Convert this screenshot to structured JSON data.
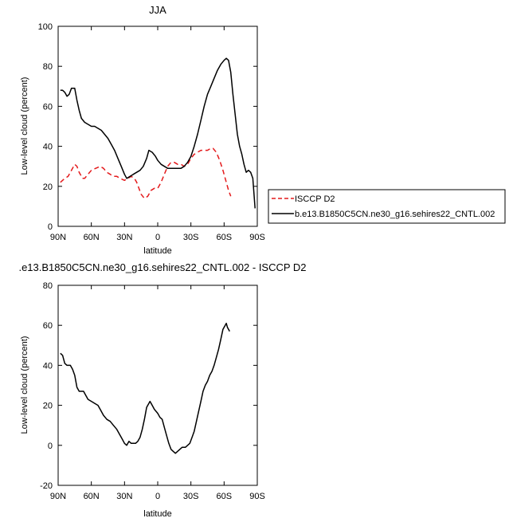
{
  "colors": {
    "model": "#000000",
    "obs": "#e41a1c",
    "diff": "#000000"
  },
  "chart_data": [
    {
      "type": "line",
      "title": "JJA",
      "xlabel": "latitude",
      "ylabel": "Low-level cloud (percent)",
      "xlim": [
        90,
        -90
      ],
      "ylim": [
        0,
        100
      ],
      "xticks": [
        {
          "value": 90,
          "label": "90N"
        },
        {
          "value": 60,
          "label": "60N"
        },
        {
          "value": 30,
          "label": "30N"
        },
        {
          "value": 0,
          "label": "0"
        },
        {
          "value": -30,
          "label": "30S"
        },
        {
          "value": -60,
          "label": "60S"
        },
        {
          "value": -90,
          "label": "90S"
        }
      ],
      "yticks": [
        {
          "value": 0,
          "label": "0"
        },
        {
          "value": 20,
          "label": "20"
        },
        {
          "value": 40,
          "label": "40"
        },
        {
          "value": 60,
          "label": "60"
        },
        {
          "value": 80,
          "label": "80"
        },
        {
          "value": 100,
          "label": "100"
        }
      ],
      "legend_position": "right",
      "series": [
        {
          "name": "ISCCP D2",
          "color": "#e41a1c",
          "dash": "dashed",
          "points": [
            [
              88,
              22
            ],
            [
              84,
              24
            ],
            [
              81,
              25
            ],
            [
              78,
              28
            ],
            [
              75,
              31
            ],
            [
              73,
              30
            ],
            [
              71,
              27
            ],
            [
              68,
              24
            ],
            [
              66,
              24
            ],
            [
              63,
              26
            ],
            [
              60,
              28
            ],
            [
              56,
              29
            ],
            [
              52,
              30
            ],
            [
              49,
              29
            ],
            [
              46,
              27
            ],
            [
              43,
              26
            ],
            [
              40,
              25
            ],
            [
              37,
              25
            ],
            [
              34,
              24
            ],
            [
              30,
              23
            ],
            [
              27,
              24
            ],
            [
              24,
              25
            ],
            [
              21,
              24
            ],
            [
              19,
              22
            ],
            [
              17,
              19
            ],
            [
              15,
              16
            ],
            [
              12,
              14
            ],
            [
              9,
              15
            ],
            [
              6,
              18
            ],
            [
              3,
              19
            ],
            [
              0,
              19
            ],
            [
              -3,
              22
            ],
            [
              -6,
              26
            ],
            [
              -9,
              30
            ],
            [
              -12,
              32
            ],
            [
              -15,
              32
            ],
            [
              -18,
              31
            ],
            [
              -21,
              31
            ],
            [
              -24,
              30
            ],
            [
              -27,
              31
            ],
            [
              -30,
              34
            ],
            [
              -33,
              36
            ],
            [
              -36,
              37
            ],
            [
              -39,
              38
            ],
            [
              -42,
              38
            ],
            [
              -45,
              38
            ],
            [
              -48,
              39
            ],
            [
              -50,
              39
            ],
            [
              -53,
              37
            ],
            [
              -56,
              33
            ],
            [
              -59,
              28
            ],
            [
              -62,
              22
            ],
            [
              -64,
              18
            ],
            [
              -66,
              15
            ]
          ]
        },
        {
          "name": "b.e13.B1850C5CN.ne30_g16.sehires22_CNTL.002",
          "color": "#000000",
          "dash": "solid",
          "points": [
            [
              88,
              68
            ],
            [
              86,
              68
            ],
            [
              84,
              67
            ],
            [
              82,
              65
            ],
            [
              80,
              66
            ],
            [
              78,
              69
            ],
            [
              75,
              69
            ],
            [
              73,
              63
            ],
            [
              71,
              58
            ],
            [
              69,
              54
            ],
            [
              66,
              52
            ],
            [
              63,
              51
            ],
            [
              60,
              50
            ],
            [
              57,
              50
            ],
            [
              54,
              49
            ],
            [
              51,
              48
            ],
            [
              48,
              46
            ],
            [
              45,
              44
            ],
            [
              42,
              41
            ],
            [
              39,
              38
            ],
            [
              36,
              34
            ],
            [
              33,
              30
            ],
            [
              30,
              26
            ],
            [
              28,
              24
            ],
            [
              25,
              25
            ],
            [
              22,
              26
            ],
            [
              19,
              27
            ],
            [
              16,
              28
            ],
            [
              13,
              30
            ],
            [
              10,
              34
            ],
            [
              8,
              38
            ],
            [
              5,
              37
            ],
            [
              2,
              35
            ],
            [
              0,
              33
            ],
            [
              -3,
              31
            ],
            [
              -6,
              30
            ],
            [
              -9,
              29
            ],
            [
              -12,
              29
            ],
            [
              -15,
              29
            ],
            [
              -18,
              29
            ],
            [
              -21,
              29
            ],
            [
              -24,
              30
            ],
            [
              -27,
              32
            ],
            [
              -30,
              35
            ],
            [
              -33,
              40
            ],
            [
              -36,
              46
            ],
            [
              -39,
              53
            ],
            [
              -42,
              60
            ],
            [
              -45,
              66
            ],
            [
              -48,
              70
            ],
            [
              -51,
              74
            ],
            [
              -54,
              78
            ],
            [
              -57,
              81
            ],
            [
              -60,
              83
            ],
            [
              -62,
              84
            ],
            [
              -64,
              83
            ],
            [
              -66,
              77
            ],
            [
              -68,
              66
            ],
            [
              -70,
              56
            ],
            [
              -72,
              46
            ],
            [
              -74,
              40
            ],
            [
              -76,
              36
            ],
            [
              -78,
              31
            ],
            [
              -80,
              27
            ],
            [
              -82,
              28
            ],
            [
              -84,
              27
            ],
            [
              -86,
              24
            ],
            [
              -88,
              9
            ]
          ]
        }
      ]
    },
    {
      "type": "line",
      "title": ".e13.B1850C5CN.ne30_g16.sehires22_CNTL.002 - ISCCP D2",
      "xlabel": "latitude",
      "ylabel": "Low-level cloud (percent)",
      "xlim": [
        90,
        -90
      ],
      "ylim": [
        -20,
        80
      ],
      "xticks": [
        {
          "value": 90,
          "label": "90N"
        },
        {
          "value": 60,
          "label": "60N"
        },
        {
          "value": 30,
          "label": "30N"
        },
        {
          "value": 0,
          "label": "0"
        },
        {
          "value": -30,
          "label": "30S"
        },
        {
          "value": -60,
          "label": "60S"
        },
        {
          "value": -90,
          "label": "90S"
        }
      ],
      "yticks": [
        {
          "value": -20,
          "label": "-20"
        },
        {
          "value": 0,
          "label": "0"
        },
        {
          "value": 20,
          "label": "20"
        },
        {
          "value": 40,
          "label": "40"
        },
        {
          "value": 60,
          "label": "60"
        },
        {
          "value": 80,
          "label": "80"
        }
      ],
      "series": [
        {
          "color": "#000000",
          "dash": "solid",
          "points": [
            [
              88,
              46
            ],
            [
              86,
              45
            ],
            [
              84,
              41
            ],
            [
              82,
              40
            ],
            [
              79,
              40
            ],
            [
              77,
              38
            ],
            [
              75,
              35
            ],
            [
              73,
              29
            ],
            [
              71,
              27
            ],
            [
              69,
              27
            ],
            [
              67,
              27
            ],
            [
              65,
              25
            ],
            [
              63,
              23
            ],
            [
              60,
              22
            ],
            [
              57,
              21
            ],
            [
              54,
              20
            ],
            [
              52,
              18
            ],
            [
              49,
              15
            ],
            [
              46,
              13
            ],
            [
              43,
              12
            ],
            [
              40,
              10
            ],
            [
              37,
              8
            ],
            [
              34,
              5
            ],
            [
              32,
              3
            ],
            [
              30,
              1
            ],
            [
              28,
              0
            ],
            [
              26,
              2
            ],
            [
              24,
              1
            ],
            [
              22,
              1
            ],
            [
              20,
              1
            ],
            [
              18,
              2
            ],
            [
              16,
              4
            ],
            [
              14,
              8
            ],
            [
              12,
              13
            ],
            [
              10,
              19
            ],
            [
              8,
              21
            ],
            [
              7,
              22
            ],
            [
              5,
              20
            ],
            [
              3,
              18
            ],
            [
              0,
              16
            ],
            [
              -2,
              14
            ],
            [
              -4,
              13
            ],
            [
              -6,
              9
            ],
            [
              -8,
              5
            ],
            [
              -10,
              1
            ],
            [
              -12,
              -2
            ],
            [
              -14,
              -3
            ],
            [
              -16,
              -4
            ],
            [
              -18,
              -3
            ],
            [
              -20,
              -2
            ],
            [
              -22,
              -1
            ],
            [
              -25,
              -1
            ],
            [
              -27,
              0
            ],
            [
              -29,
              1
            ],
            [
              -31,
              4
            ],
            [
              -33,
              7
            ],
            [
              -35,
              12
            ],
            [
              -37,
              17
            ],
            [
              -39,
              22
            ],
            [
              -41,
              27
            ],
            [
              -43,
              30
            ],
            [
              -45,
              32
            ],
            [
              -47,
              35
            ],
            [
              -49,
              37
            ],
            [
              -51,
              40
            ],
            [
              -53,
              44
            ],
            [
              -55,
              48
            ],
            [
              -57,
              53
            ],
            [
              -59,
              58
            ],
            [
              -61,
              60
            ],
            [
              -62,
              61
            ],
            [
              -63,
              59
            ],
            [
              -65,
              57
            ]
          ]
        }
      ]
    }
  ]
}
